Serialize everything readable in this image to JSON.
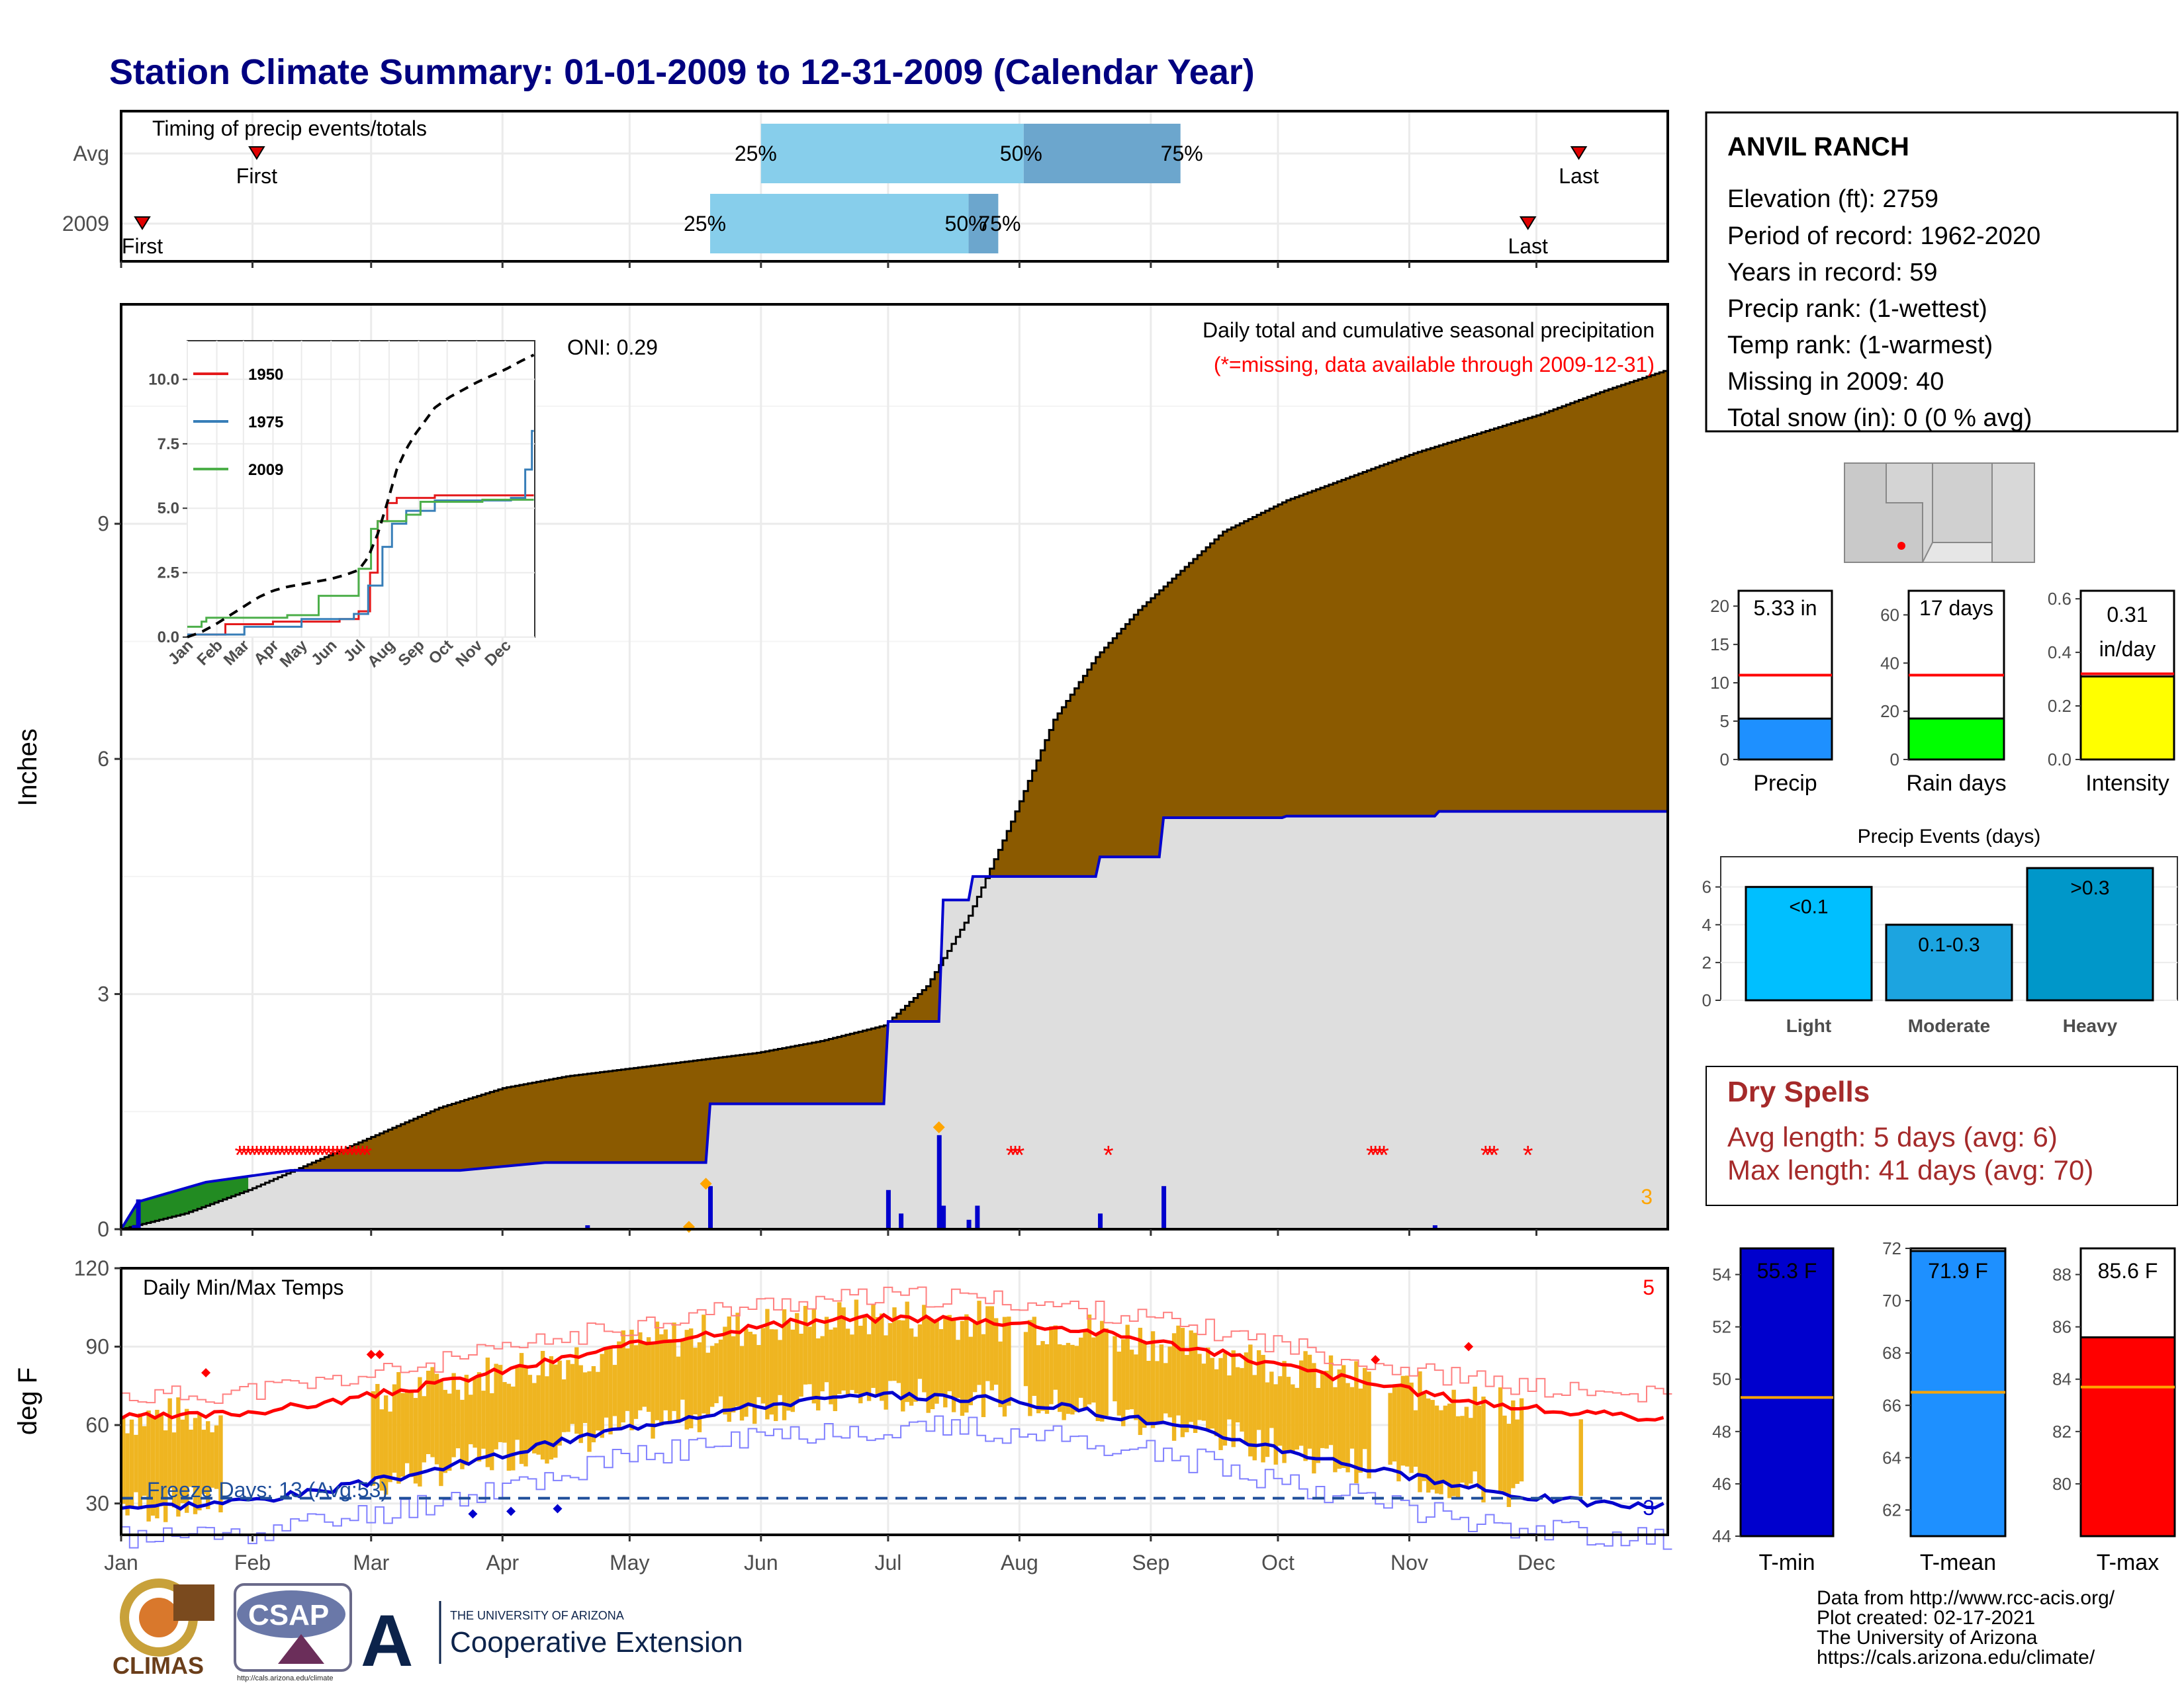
{
  "title": "Station Climate Summary: 01-01-2009 to 12-31-2009 (Calendar Year)",
  "colors": {
    "title": "#000080",
    "cumulative_avg_fill": "#8B5A00",
    "observed_fill": "#DEDEDE",
    "observed_line": "#0000CD",
    "max_temp": "#FF0000",
    "min_temp": "#0000CD",
    "temp_bar": "#EFB521",
    "precip_bar": "#1E90FF",
    "raindays_bar": "#00FF00",
    "intensity_bar": "#FFFF00",
    "event_light": "#00BFFF",
    "event_moderate": "#1CA4E0",
    "event_heavy": "#0097C9",
    "dry_spell_text": "#A52A2A",
    "timing_light": "#87CEEB",
    "timing_dark": "#6CA6CD",
    "missing": "#FF0000",
    "marker_orange": "#FFA500"
  },
  "timing_panel": {
    "title": "Timing of precip events/totals",
    "rows": [
      {
        "label": "Avg",
        "first_label": "First",
        "last_label": "Last",
        "first_day": 32,
        "last_day": 344,
        "p25": 151,
        "p50": 213,
        "p75": 250,
        "p25_label": "25%",
        "p50_label": "50%",
        "p75_label": "75%"
      },
      {
        "label": "2009",
        "first_label": "First",
        "last_label": "Last",
        "first_day": 5,
        "last_day": 332,
        "p25": 139,
        "p50": 200,
        "p75": 207,
        "p25_label": "25%",
        "p50_label": "50%",
        "p75_label": "75%"
      }
    ]
  },
  "precip_panel": {
    "ylabel": "Inches",
    "yticks": [
      "0",
      "3",
      "6",
      "9"
    ],
    "oni": "ONI: 0.29",
    "subtitle": "Daily total and cumulative seasonal precipitation",
    "missing_note": "(*=missing, data available through 2009-12-31)",
    "count_label": "3",
    "ylim": [
      0,
      11.8
    ]
  },
  "inset": {
    "yticks": [
      "0.0",
      "2.5",
      "5.0",
      "7.5",
      "10.0"
    ],
    "xticks": [
      "Jan",
      "Feb",
      "Mar",
      "Apr",
      "May",
      "Jun",
      "Jul",
      "Aug",
      "Sep",
      "Oct",
      "Nov",
      "Dec"
    ],
    "legend": [
      "1950",
      "1975",
      "2009"
    ]
  },
  "temp_panel": {
    "title": "Daily Min/Max Temps",
    "ylabel": "deg F",
    "yticks": [
      "30",
      "60",
      "90",
      "120"
    ],
    "freeze_label": "Freeze Days: 13 (Avg:53)",
    "count_max": "5",
    "count_min": "3",
    "ylim": [
      18,
      120
    ],
    "freeze_line": 32
  },
  "months": [
    "Jan",
    "Feb",
    "Mar",
    "Apr",
    "May",
    "Jun",
    "Jul",
    "Aug",
    "Sep",
    "Oct",
    "Nov",
    "Dec"
  ],
  "station": {
    "name": "ANVIL RANCH",
    "lines": [
      "Elevation (ft): 2759",
      "Period of record: 1962-2020",
      "Years in record: 59",
      "Precip rank:  (1-wettest)",
      "Temp rank:  (1-warmest)",
      "Missing in 2009: 40",
      "Total snow (in): 0 (0 % avg)"
    ]
  },
  "mini_bars": [
    {
      "label": "Precip",
      "value_text": "5.33 in",
      "value": 5.33,
      "avg": 11,
      "ymax": 22,
      "yticks": [
        "0",
        "5",
        "10",
        "15",
        "20"
      ],
      "tickvals": [
        0,
        5,
        10,
        15,
        20
      ]
    },
    {
      "label": "Rain days",
      "value_text": "17 days",
      "value": 17,
      "avg": 35,
      "ymax": 70,
      "yticks": [
        "0",
        "20",
        "40",
        "60"
      ],
      "tickvals": [
        0,
        20,
        40,
        60
      ]
    },
    {
      "label": "Intensity",
      "value_text": "0.31",
      "value_text2": "in/day",
      "value": 0.31,
      "avg": 0.32,
      "ymax": 0.63,
      "yticks": [
        "0.0",
        "0.2",
        "0.4",
        "0.6"
      ],
      "tickvals": [
        0,
        0.2,
        0.4,
        0.6
      ]
    }
  ],
  "events": {
    "title": "Precip Events (days)",
    "yticks": [
      "0",
      "2",
      "4",
      "6"
    ],
    "bars": [
      {
        "category": "Light",
        "label": "<0.1",
        "value": 6
      },
      {
        "category": "Moderate",
        "label": "0.1-0.3",
        "value": 4
      },
      {
        "category": "Heavy",
        "label": ">0.3",
        "value": 7
      }
    ]
  },
  "dry_spells": {
    "title": "Dry Spells",
    "avg": "Avg length: 5 days (avg: 6)",
    "max": "Max length: 41 days (avg: 70)"
  },
  "temp_bars": [
    {
      "label": "T-min",
      "value_text": "55.3 F",
      "value": 55.3,
      "avg": 49.3,
      "ymin": 44,
      "ymax": 55,
      "yticks": [
        "44",
        "46",
        "48",
        "50",
        "52",
        "54"
      ],
      "tickvals": [
        44,
        46,
        48,
        50,
        52,
        54
      ]
    },
    {
      "label": "T-mean",
      "value_text": "71.9 F",
      "value": 71.9,
      "avg": 66.5,
      "ymin": 61,
      "ymax": 72,
      "yticks": [
        "62",
        "64",
        "66",
        "68",
        "70",
        "72"
      ],
      "tickvals": [
        62,
        64,
        66,
        68,
        70,
        72
      ]
    },
    {
      "label": "T-max",
      "value_text": "85.6 F",
      "value": 85.6,
      "avg": 83.7,
      "ymin": 78,
      "ymax": 89,
      "yticks": [
        "80",
        "82",
        "84",
        "86",
        "88"
      ],
      "tickvals": [
        80,
        82,
        84,
        86,
        88
      ]
    }
  ],
  "footer": {
    "lines": [
      "Data from http://www.rcc-acis.org/",
      "Plot created: 02-17-2021",
      "The University of Arizona",
      "https://cals.arizona.edu/climate/"
    ],
    "logo_climas": "CLIMAS",
    "logo_csap": "CSAP",
    "logo_csap_url": "http://cals.arizona.edu/climate",
    "logo_ua_small": "THE UNIVERSITY OF ARIZONA",
    "logo_ua_big": "Cooperative Extension"
  },
  "chart_data": {
    "type": "area",
    "xlabel": "",
    "ylabel": "Inches",
    "ylim": [
      0,
      11.8
    ],
    "series": [
      {
        "name": "",
        "x": [
          0,
          15,
          30,
          45,
          60,
          75,
          90,
          105,
          120,
          135,
          150,
          165,
          180,
          190,
          200,
          210,
          220,
          230,
          240,
          250,
          260,
          275,
          290,
          305,
          320,
          335,
          350,
          364
        ],
        "values": [
          0,
          0.2,
          0.5,
          0.85,
          1.2,
          1.55,
          1.8,
          1.95,
          2.05,
          2.15,
          2.25,
          2.4,
          2.6,
          3.1,
          4.0,
          5.2,
          6.5,
          7.3,
          7.9,
          8.4,
          8.9,
          9.3,
          9.6,
          9.9,
          10.15,
          10.4,
          10.7,
          10.95
        ]
      },
      {
        "name": "",
        "x": [
          0,
          4,
          20,
          40,
          60,
          80,
          100,
          110,
          138,
          139,
          180,
          181,
          193,
          194,
          200,
          201,
          230,
          231,
          245,
          246,
          274,
          275,
          310,
          311,
          364
        ],
        "values": [
          0,
          0.35,
          0.6,
          0.75,
          0.75,
          0.75,
          0.85,
          0.85,
          0.85,
          1.6,
          1.6,
          2.65,
          2.65,
          4.2,
          4.2,
          4.5,
          4.5,
          4.75,
          4.75,
          5.25,
          5.25,
          5.27,
          5.27,
          5.33,
          5.33
        ]
      }
    ]
  }
}
